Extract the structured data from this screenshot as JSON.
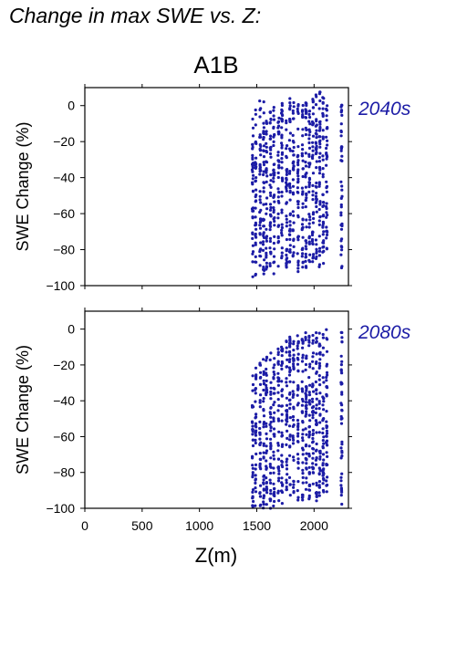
{
  "page_title": "Change in max SWE vs. Z:",
  "chart_data": {
    "type": "scatter",
    "scenario": "A1B",
    "xlabel": "Z(m)",
    "ylabel": "SWE Change (%)",
    "xlim": [
      0,
      2300
    ],
    "ylim": [
      -100,
      10
    ],
    "xticks": [
      0,
      500,
      1000,
      1500,
      2000
    ],
    "yticks": [
      0,
      -20,
      -40,
      -60,
      -80,
      -100
    ],
    "point_color": "#1c1ca6",
    "panels": [
      {
        "label": "2040s",
        "columns": [
          {
            "z": 1465,
            "min": -97,
            "max": -5
          },
          {
            "z": 1490,
            "min": -95,
            "max": -2
          },
          {
            "z": 1530,
            "min": -93,
            "max": 5
          },
          {
            "z": 1560,
            "min": -96,
            "max": 5
          },
          {
            "z": 1585,
            "min": -92,
            "max": -8
          },
          {
            "z": 1620,
            "min": -95,
            "max": 0
          },
          {
            "z": 1650,
            "min": -94,
            "max": 3
          },
          {
            "z": 1690,
            "min": -90,
            "max": -6
          },
          {
            "z": 1720,
            "min": -92,
            "max": 3
          },
          {
            "z": 1760,
            "min": -90,
            "max": 1
          },
          {
            "z": 1790,
            "min": -88,
            "max": 6
          },
          {
            "z": 1820,
            "min": -85,
            "max": 2
          },
          {
            "z": 1860,
            "min": -93,
            "max": 4
          },
          {
            "z": 1900,
            "min": -90,
            "max": 3
          },
          {
            "z": 1930,
            "min": -92,
            "max": 5
          },
          {
            "z": 1960,
            "min": -90,
            "max": 2
          },
          {
            "z": 1990,
            "min": -88,
            "max": 5
          },
          {
            "z": 2020,
            "min": -93,
            "max": 6
          },
          {
            "z": 2050,
            "min": -90,
            "max": 8
          },
          {
            "z": 2080,
            "min": -92,
            "max": 6
          },
          {
            "z": 2110,
            "min": -85,
            "max": 3
          },
          {
            "z": 2240,
            "min": -93,
            "max": 3
          }
        ]
      },
      {
        "label": "2080s",
        "columns": [
          {
            "z": 1465,
            "min": -100,
            "max": -22
          },
          {
            "z": 1490,
            "min": -100,
            "max": -20
          },
          {
            "z": 1530,
            "min": -100,
            "max": -18
          },
          {
            "z": 1560,
            "min": -100,
            "max": -16
          },
          {
            "z": 1585,
            "min": -99,
            "max": -14
          },
          {
            "z": 1620,
            "min": -100,
            "max": -12
          },
          {
            "z": 1650,
            "min": -99,
            "max": -12
          },
          {
            "z": 1690,
            "min": -97,
            "max": -10
          },
          {
            "z": 1720,
            "min": -98,
            "max": -8
          },
          {
            "z": 1760,
            "min": -96,
            "max": -5
          },
          {
            "z": 1790,
            "min": -95,
            "max": -4
          },
          {
            "z": 1820,
            "min": -94,
            "max": -5
          },
          {
            "z": 1860,
            "min": -97,
            "max": -3
          },
          {
            "z": 1900,
            "min": -96,
            "max": -3
          },
          {
            "z": 1930,
            "min": -97,
            "max": -2
          },
          {
            "z": 1960,
            "min": -96,
            "max": -2
          },
          {
            "z": 1990,
            "min": -95,
            "max": -1
          },
          {
            "z": 2020,
            "min": -96,
            "max": 0
          },
          {
            "z": 2050,
            "min": -97,
            "max": 0
          },
          {
            "z": 2080,
            "min": -96,
            "max": 0
          },
          {
            "z": 2110,
            "min": -94,
            "max": 0
          },
          {
            "z": 2240,
            "min": -98,
            "max": 2
          }
        ]
      }
    ]
  }
}
